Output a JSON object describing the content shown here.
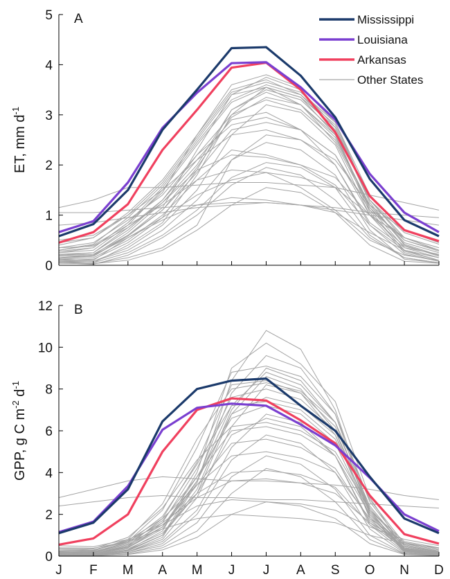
{
  "months": [
    "J",
    "F",
    "M",
    "A",
    "M",
    "J",
    "J",
    "A",
    "S",
    "O",
    "N",
    "D"
  ],
  "legend": [
    {
      "label": "Mississippi",
      "color": "#1b3a6b"
    },
    {
      "label": "Louisiana",
      "color": "#7a3fd0"
    },
    {
      "label": "Arkansas",
      "color": "#f0405e"
    },
    {
      "label": "Other States",
      "color": "#9a9a9a"
    }
  ],
  "chart_data": [
    {
      "type": "line",
      "panel": "A",
      "ylabel": "ET, mm d",
      "ylabel_sup": "-1",
      "ylim": [
        0,
        5
      ],
      "yticks": [
        0,
        1,
        2,
        3,
        4,
        5
      ],
      "categories": [
        "J",
        "F",
        "M",
        "A",
        "M",
        "J",
        "J",
        "A",
        "S",
        "O",
        "N",
        "D"
      ],
      "series": [
        {
          "name": "Mississippi",
          "color": "#1b3a6b",
          "values": [
            0.58,
            0.82,
            1.5,
            2.7,
            3.5,
            4.33,
            4.35,
            3.78,
            2.95,
            1.72,
            0.9,
            0.58
          ]
        },
        {
          "name": "Louisiana",
          "color": "#7a3fd0",
          "values": [
            0.66,
            0.88,
            1.65,
            2.74,
            3.44,
            4.03,
            4.05,
            3.55,
            2.9,
            1.82,
            1.05,
            0.66
          ]
        },
        {
          "name": "Arkansas",
          "color": "#f0405e",
          "values": [
            0.45,
            0.66,
            1.22,
            2.3,
            3.1,
            3.94,
            4.04,
            3.5,
            2.65,
            1.38,
            0.7,
            0.48
          ]
        }
      ],
      "others": [
        [
          0.12,
          0.1,
          0.55,
          0.95,
          1.4,
          1.7,
          1.85,
          1.55,
          1.1,
          0.5,
          0.2,
          0.1
        ],
        [
          0.2,
          0.25,
          0.75,
          1.3,
          2.1,
          2.9,
          3.05,
          2.7,
          2.0,
          0.85,
          0.35,
          0.22
        ],
        [
          0.3,
          0.42,
          0.95,
          1.6,
          2.5,
          3.4,
          3.55,
          3.2,
          2.45,
          1.15,
          0.5,
          0.3
        ],
        [
          0.08,
          0.05,
          0.4,
          0.85,
          1.8,
          3.0,
          3.55,
          3.35,
          2.6,
          1.05,
          0.3,
          0.1
        ],
        [
          0.15,
          0.18,
          0.6,
          1.15,
          2.3,
          3.4,
          3.75,
          3.5,
          2.75,
          1.25,
          0.4,
          0.18
        ],
        [
          0.25,
          0.35,
          0.85,
          1.45,
          2.6,
          3.6,
          3.8,
          3.55,
          2.85,
          1.3,
          0.55,
          0.3
        ],
        [
          1.15,
          1.3,
          1.55,
          1.55,
          1.6,
          1.65,
          1.65,
          1.6,
          1.55,
          1.4,
          1.25,
          1.1
        ],
        [
          1.05,
          1.05,
          1.1,
          1.15,
          1.2,
          1.25,
          1.25,
          1.2,
          1.15,
          1.05,
          1.0,
          0.95
        ],
        [
          0.8,
          0.85,
          0.95,
          1.05,
          1.15,
          1.2,
          1.25,
          1.2,
          1.1,
          1.0,
          0.9,
          0.8
        ],
        [
          0.05,
          0.02,
          0.2,
          0.55,
          1.0,
          1.6,
          1.95,
          1.8,
          1.3,
          0.55,
          0.15,
          0.05
        ],
        [
          0.1,
          0.08,
          0.35,
          0.8,
          1.5,
          2.6,
          3.2,
          3.05,
          2.4,
          1.0,
          0.25,
          0.08
        ],
        [
          0.18,
          0.2,
          0.65,
          1.25,
          2.0,
          3.1,
          3.45,
          3.2,
          2.55,
          1.2,
          0.42,
          0.2
        ],
        [
          0.05,
          0.03,
          0.15,
          0.35,
          0.8,
          2.1,
          2.45,
          2.3,
          1.8,
          0.7,
          0.12,
          0.05
        ],
        [
          0.35,
          0.45,
          0.9,
          1.4,
          2.2,
          2.8,
          2.95,
          2.7,
          2.2,
          1.1,
          0.55,
          0.35
        ],
        [
          0.4,
          0.55,
          1.05,
          1.7,
          2.6,
          3.5,
          3.7,
          3.4,
          2.7,
          1.3,
          0.65,
          0.42
        ],
        [
          0.12,
          0.15,
          0.5,
          1.0,
          1.7,
          2.3,
          2.2,
          2.0,
          1.6,
          0.8,
          0.3,
          0.15
        ],
        [
          0.3,
          0.4,
          0.8,
          1.2,
          1.7,
          1.9,
          1.85,
          1.75,
          1.55,
          1.0,
          0.55,
          0.3
        ],
        [
          0.22,
          0.25,
          0.7,
          1.3,
          2.2,
          3.0,
          3.3,
          3.1,
          2.5,
          1.2,
          0.45,
          0.25
        ],
        [
          0.08,
          0.08,
          0.3,
          0.7,
          1.3,
          2.1,
          2.6,
          2.5,
          2.0,
          0.8,
          0.22,
          0.08
        ],
        [
          0.5,
          0.6,
          1.0,
          1.5,
          2.1,
          2.6,
          2.7,
          2.5,
          2.1,
          1.2,
          0.7,
          0.5
        ],
        [
          0.15,
          0.2,
          0.55,
          0.9,
          1.2,
          1.35,
          1.3,
          1.2,
          1.05,
          0.65,
          0.3,
          0.15
        ],
        [
          0.28,
          0.35,
          0.85,
          1.55,
          2.45,
          3.3,
          3.6,
          3.4,
          2.8,
          1.3,
          0.55,
          0.3
        ],
        [
          0.1,
          0.12,
          0.45,
          0.95,
          1.9,
          3.1,
          3.5,
          3.3,
          2.65,
          1.1,
          0.28,
          0.1
        ],
        [
          0.2,
          0.22,
          0.6,
          1.1,
          1.85,
          2.7,
          2.85,
          2.7,
          2.2,
          1.0,
          0.38,
          0.2
        ],
        [
          0.35,
          0.38,
          0.75,
          1.25,
          1.9,
          2.2,
          2.15,
          2.0,
          1.75,
          1.0,
          0.55,
          0.35
        ],
        [
          0.06,
          0.05,
          0.25,
          0.6,
          1.1,
          1.75,
          2.05,
          1.95,
          1.55,
          0.6,
          0.15,
          0.05
        ],
        [
          0.25,
          0.3,
          0.8,
          1.5,
          2.4,
          3.25,
          3.55,
          3.35,
          2.75,
          1.3,
          0.5,
          0.28
        ],
        [
          0.45,
          0.55,
          1.0,
          1.65,
          2.55,
          3.45,
          3.65,
          3.45,
          2.85,
          1.4,
          0.7,
          0.45
        ],
        [
          0.14,
          0.18,
          0.58,
          1.1,
          1.95,
          2.95,
          3.35,
          3.2,
          2.6,
          1.15,
          0.35,
          0.15
        ],
        [
          0.04,
          0.03,
          0.1,
          0.3,
          0.7,
          1.2,
          1.55,
          1.45,
          1.05,
          0.4,
          0.08,
          0.04
        ]
      ]
    },
    {
      "type": "line",
      "panel": "B",
      "ylabel": "GPP, g C m",
      "ylabel_sup1": "-2",
      "ylabel_mid": " d",
      "ylabel_sup2": "-1",
      "ylim": [
        0,
        12
      ],
      "yticks": [
        0,
        2,
        4,
        6,
        8,
        10,
        12
      ],
      "categories": [
        "J",
        "F",
        "M",
        "A",
        "M",
        "J",
        "J",
        "A",
        "S",
        "O",
        "N",
        "D"
      ],
      "series": [
        {
          "name": "Mississippi",
          "color": "#1b3a6b",
          "values": [
            1.1,
            1.6,
            3.2,
            6.45,
            8.0,
            8.4,
            8.5,
            7.2,
            6.0,
            3.8,
            1.8,
            1.1
          ]
        },
        {
          "name": "Louisiana",
          "color": "#7a3fd0",
          "values": [
            1.15,
            1.65,
            3.35,
            6.05,
            7.1,
            7.3,
            7.2,
            6.3,
            5.3,
            3.75,
            2.0,
            1.2
          ]
        },
        {
          "name": "Arkansas",
          "color": "#f0405e",
          "values": [
            0.55,
            0.85,
            2.0,
            5.0,
            7.0,
            7.55,
            7.45,
            6.5,
            5.4,
            2.9,
            1.05,
            0.6
          ]
        }
      ],
      "others": [
        [
          0.15,
          0.1,
          0.5,
          1.8,
          4.5,
          8.2,
          8.4,
          7.8,
          6.2,
          2.4,
          0.4,
          0.15
        ],
        [
          0.1,
          0.05,
          0.3,
          1.2,
          4.0,
          9.0,
          10.2,
          9.2,
          7.4,
          2.8,
          0.3,
          0.1
        ],
        [
          0.2,
          0.15,
          0.7,
          2.2,
          5.2,
          8.8,
          9.1,
          8.6,
          6.8,
          2.6,
          0.5,
          0.2
        ],
        [
          0.05,
          0.03,
          0.2,
          0.9,
          3.5,
          8.4,
          10.8,
          9.9,
          7.0,
          2.2,
          0.2,
          0.05
        ],
        [
          2.8,
          3.2,
          3.6,
          3.8,
          3.7,
          3.6,
          3.6,
          3.5,
          3.4,
          3.2,
          2.9,
          2.7
        ],
        [
          2.4,
          2.6,
          2.8,
          2.9,
          2.8,
          2.8,
          2.7,
          2.7,
          2.6,
          2.5,
          2.4,
          2.3
        ],
        [
          0.3,
          0.25,
          0.8,
          2.5,
          5.6,
          8.0,
          8.3,
          7.9,
          6.4,
          2.7,
          0.6,
          0.3
        ],
        [
          0.08,
          0.05,
          0.25,
          1.0,
          3.2,
          7.0,
          9.0,
          8.4,
          6.4,
          2.0,
          0.25,
          0.08
        ],
        [
          0.12,
          0.1,
          0.4,
          1.4,
          3.8,
          6.6,
          7.2,
          6.8,
          5.4,
          1.9,
          0.35,
          0.12
        ],
        [
          0.4,
          0.35,
          0.9,
          2.3,
          4.6,
          6.2,
          6.4,
          6.0,
          5.0,
          2.2,
          0.7,
          0.4
        ],
        [
          0.05,
          0.05,
          0.15,
          0.6,
          2.0,
          4.6,
          5.8,
          5.4,
          4.0,
          1.3,
          0.15,
          0.05
        ],
        [
          0.2,
          0.18,
          0.55,
          1.5,
          3.0,
          4.0,
          4.1,
          3.9,
          3.3,
          1.5,
          0.45,
          0.2
        ],
        [
          0.06,
          0.04,
          0.2,
          0.8,
          2.8,
          6.2,
          8.2,
          7.8,
          5.8,
          1.8,
          0.22,
          0.06
        ],
        [
          0.15,
          0.12,
          0.45,
          1.6,
          4.2,
          7.6,
          8.0,
          7.5,
          6.0,
          2.3,
          0.4,
          0.15
        ],
        [
          0.25,
          0.22,
          0.65,
          1.9,
          4.4,
          7.2,
          7.4,
          7.0,
          5.6,
          2.2,
          0.55,
          0.25
        ],
        [
          0.03,
          0.02,
          0.1,
          0.4,
          1.2,
          3.0,
          4.2,
          3.8,
          2.6,
          0.8,
          0.1,
          0.03
        ],
        [
          0.1,
          0.08,
          0.35,
          1.1,
          3.0,
          5.8,
          6.6,
          6.2,
          4.8,
          1.6,
          0.3,
          0.1
        ],
        [
          0.35,
          0.3,
          0.75,
          1.8,
          3.4,
          4.8,
          5.0,
          4.7,
          4.0,
          1.8,
          0.65,
          0.35
        ],
        [
          0.08,
          0.06,
          0.28,
          1.0,
          3.6,
          7.8,
          9.6,
          9.0,
          6.8,
          2.1,
          0.28,
          0.08
        ],
        [
          0.18,
          0.15,
          0.5,
          1.4,
          3.4,
          5.4,
          5.6,
          5.2,
          4.2,
          1.7,
          0.4,
          0.18
        ],
        [
          0.5,
          0.45,
          0.8,
          1.5,
          2.4,
          2.7,
          2.6,
          2.5,
          2.2,
          1.4,
          0.8,
          0.5
        ],
        [
          0.05,
          0.04,
          0.15,
          0.5,
          1.6,
          3.8,
          4.8,
          4.4,
          3.2,
          1.0,
          0.12,
          0.05
        ],
        [
          0.12,
          0.1,
          0.4,
          1.3,
          3.6,
          7.2,
          8.8,
          8.2,
          6.4,
          2.1,
          0.32,
          0.12
        ],
        [
          0.22,
          0.2,
          0.6,
          1.7,
          3.8,
          6.0,
          6.2,
          5.8,
          4.8,
          2.0,
          0.5,
          0.22
        ],
        [
          0.02,
          0.02,
          0.08,
          0.3,
          0.9,
          2.0,
          2.6,
          2.4,
          1.8,
          0.6,
          0.08,
          0.02
        ],
        [
          0.3,
          0.28,
          0.7,
          1.6,
          2.8,
          3.6,
          3.7,
          3.5,
          3.0,
          1.6,
          0.6,
          0.3
        ],
        [
          0.1,
          0.08,
          0.3,
          1.0,
          3.0,
          6.8,
          8.6,
          8.0,
          6.0,
          1.9,
          0.28,
          0.1
        ],
        [
          0.14,
          0.12,
          0.42,
          1.4,
          3.6,
          6.8,
          7.6,
          7.2,
          5.8,
          2.1,
          0.36,
          0.14
        ],
        [
          0.06,
          0.05,
          0.2,
          0.7,
          2.2,
          5.2,
          6.8,
          6.4,
          4.8,
          1.5,
          0.2,
          0.06
        ],
        [
          0.4,
          0.38,
          0.7,
          1.3,
          1.8,
          2.0,
          1.9,
          1.8,
          1.6,
          1.0,
          0.6,
          0.4
        ]
      ]
    }
  ]
}
